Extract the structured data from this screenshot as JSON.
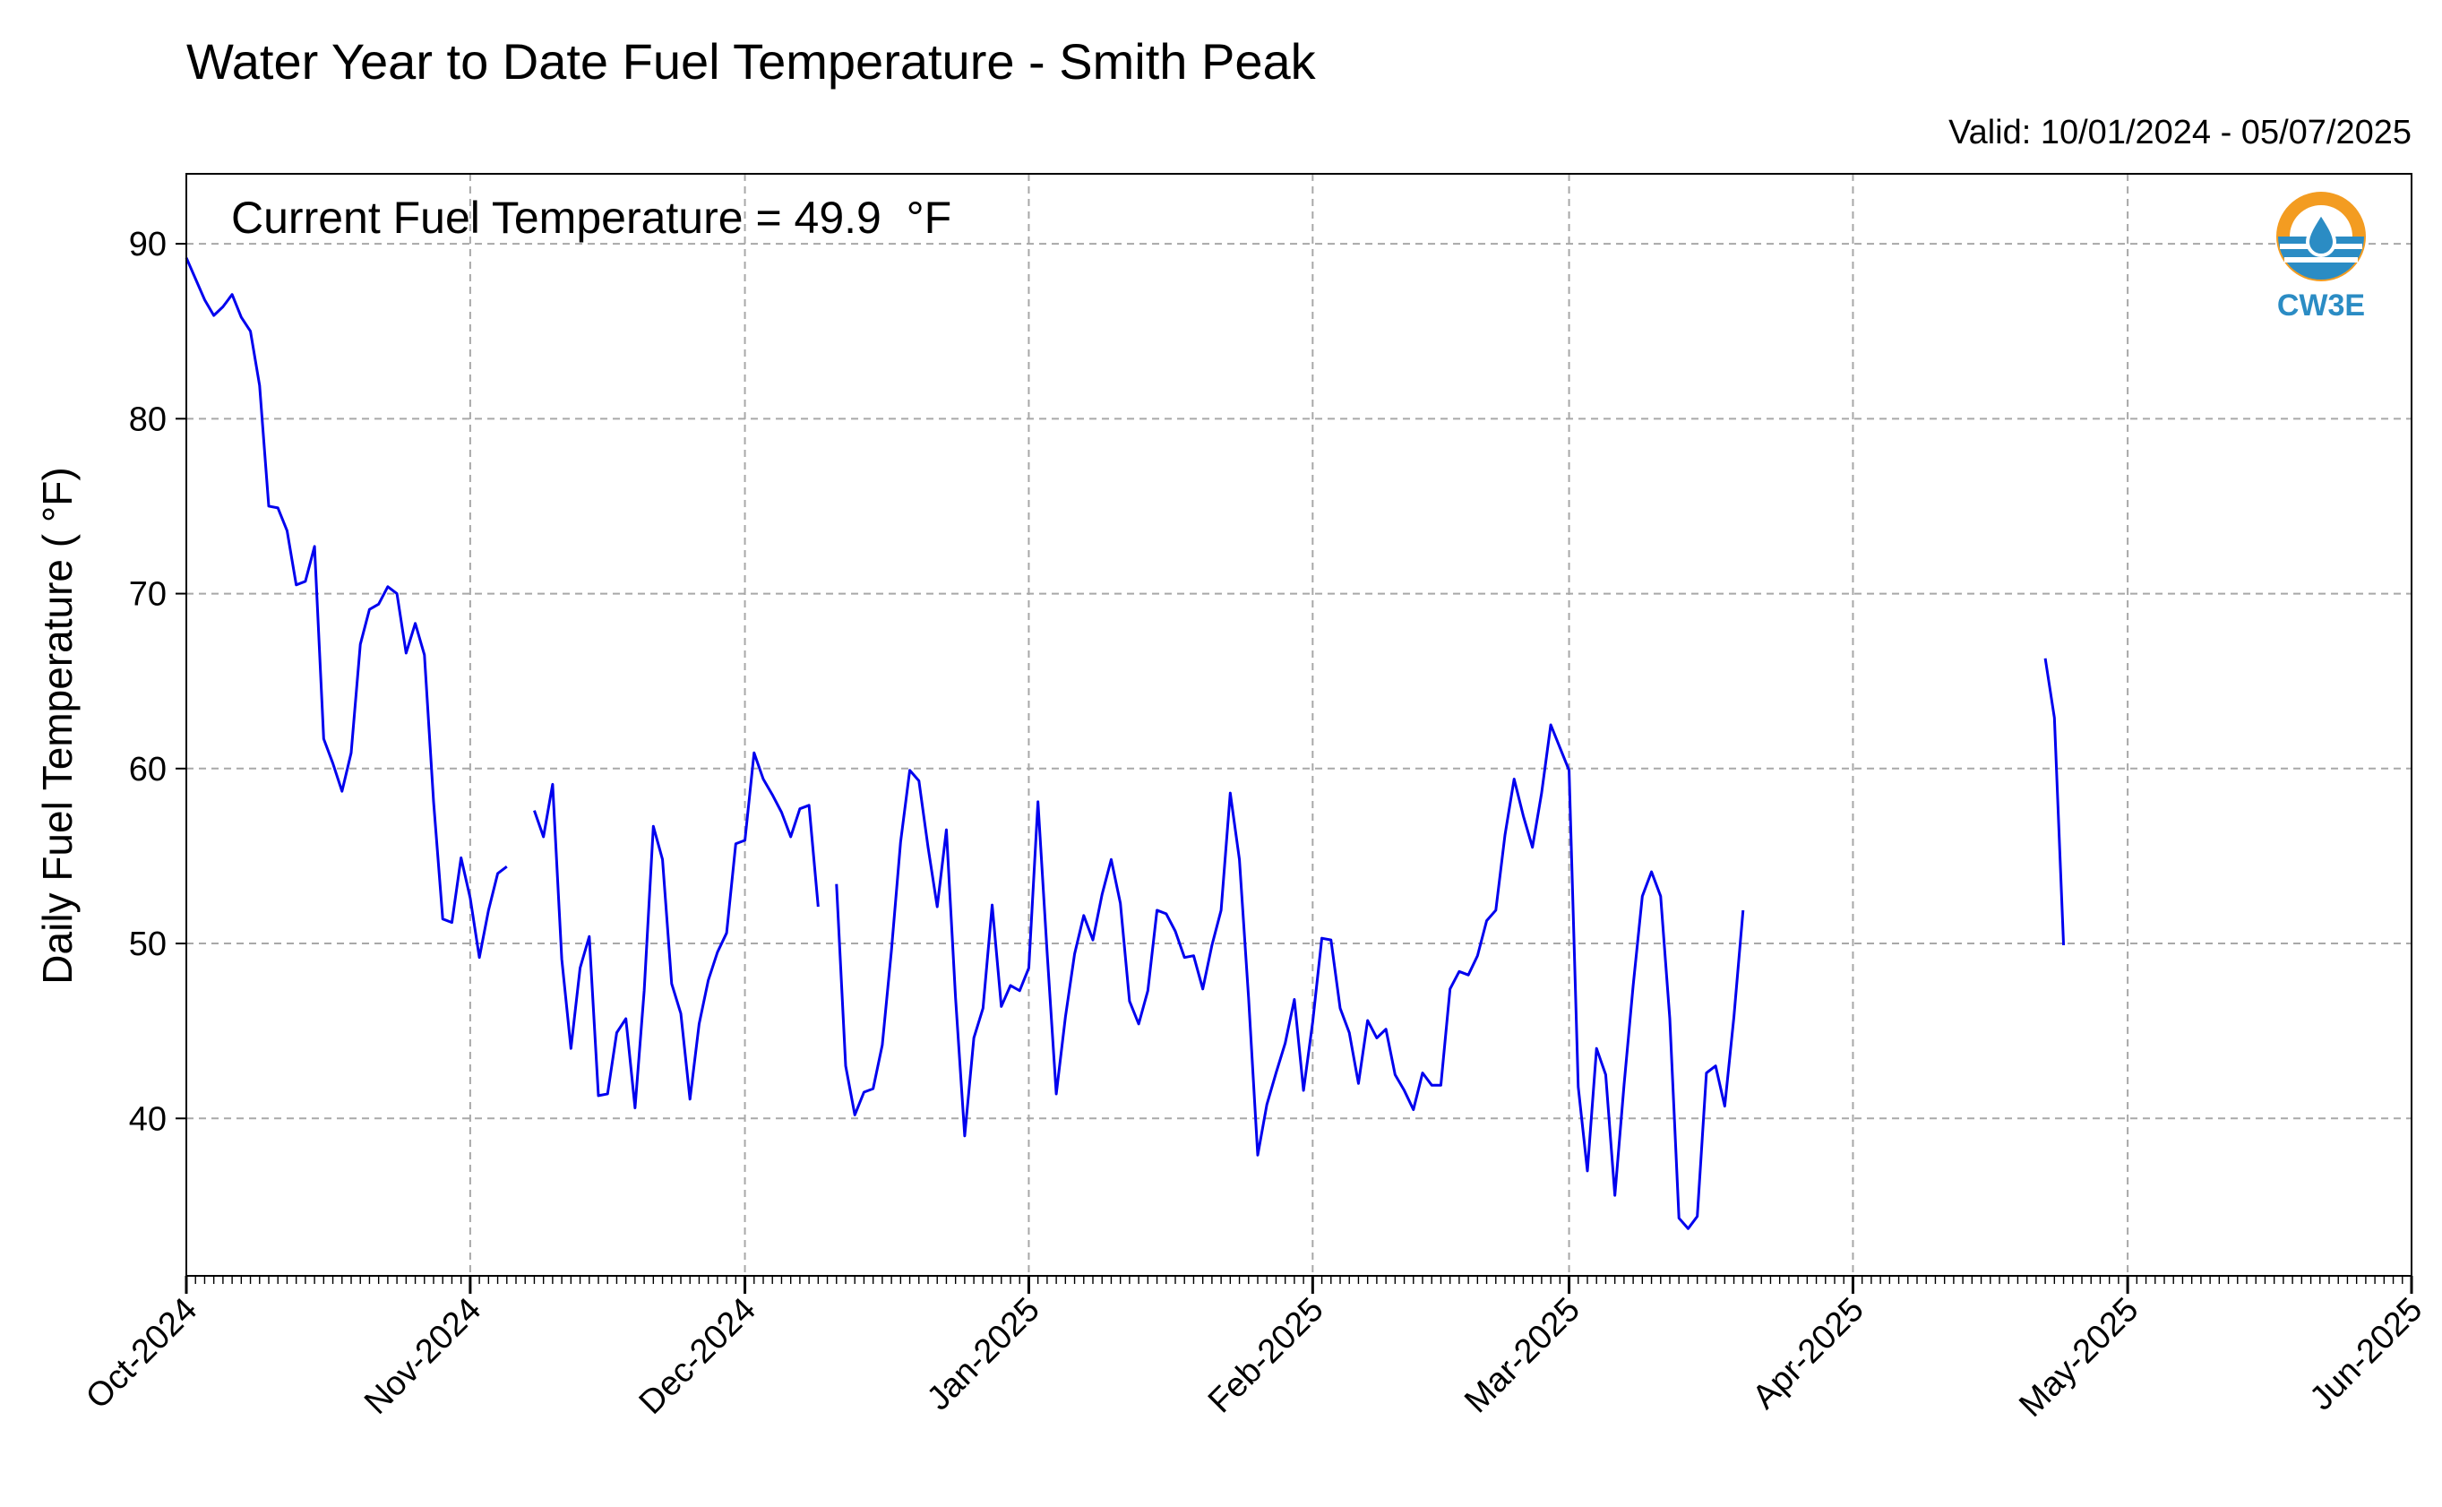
{
  "chart_data": {
    "type": "line",
    "title": "Water Year to Date Fuel Temperature - Smith Peak",
    "valid_text": "Valid: 10/01/2024 - 05/07/2025",
    "annotation": "Current Fuel Temperature = 49.9  °F",
    "xlabel": "",
    "ylabel": "Daily Fuel Temperature ( °F)",
    "x_start": "2024-10-01",
    "xlim": [
      "2024-10-01",
      "2025-06-01"
    ],
    "x_ticks": [
      {
        "date": "2024-10-01",
        "label": "Oct-2024"
      },
      {
        "date": "2024-11-01",
        "label": "Nov-2024"
      },
      {
        "date": "2024-12-01",
        "label": "Dec-2024"
      },
      {
        "date": "2025-01-01",
        "label": "Jan-2025"
      },
      {
        "date": "2025-02-01",
        "label": "Feb-2025"
      },
      {
        "date": "2025-03-01",
        "label": "Mar-2025"
      },
      {
        "date": "2025-04-01",
        "label": "Apr-2025"
      },
      {
        "date": "2025-05-01",
        "label": "May-2025"
      },
      {
        "date": "2025-06-01",
        "label": "Jun-2025"
      }
    ],
    "ylim": [
      31,
      94
    ],
    "y_ticks": [
      40,
      50,
      60,
      70,
      80,
      90
    ],
    "grid": true,
    "line_color": "#0000ee",
    "series": [
      {
        "name": "",
        "segments": [
          {
            "start": "2024-10-01",
            "values": [
              89.2,
              88.0,
              86.8,
              85.9,
              86.4,
              87.1,
              85.8,
              85.0,
              81.9,
              75.0,
              74.9,
              73.6,
              70.5,
              70.7,
              72.7,
              61.7,
              60.3,
              58.7,
              60.9,
              67.1,
              69.1,
              69.4,
              70.4,
              70.0,
              66.6,
              68.3,
              66.5,
              58.1,
              51.4,
              51.2,
              54.9,
              52.6,
              49.2,
              51.9,
              54.0,
              54.4
            ]
          },
          {
            "start": "2024-11-08",
            "values": [
              57.6,
              56.1,
              59.1,
              49.1,
              44.0,
              48.6,
              50.4,
              41.3,
              41.4,
              44.9,
              45.7,
              40.6,
              47.3,
              56.7,
              54.8,
              47.7,
              46.0,
              41.1,
              45.4,
              47.9,
              49.5,
              50.6,
              55.7,
              55.9,
              60.9,
              59.4,
              58.5,
              57.5,
              56.1,
              57.7,
              57.9,
              52.1
            ]
          },
          {
            "start": "2024-12-11",
            "values": [
              53.4,
              43.0,
              40.2,
              41.5,
              41.7,
              44.2,
              49.6,
              55.8,
              59.9,
              59.3,
              55.5,
              52.1,
              56.5,
              46.9,
              39.0,
              44.6,
              46.3,
              52.2,
              46.4,
              47.6,
              47.3,
              48.6,
              58.1,
              49.5,
              41.4,
              45.8,
              49.4,
              51.6,
              50.2,
              52.8,
              54.8,
              52.3,
              46.7,
              45.4,
              47.3,
              51.9,
              51.7,
              50.7,
              49.2,
              49.3,
              47.4,
              49.9,
              51.9,
              58.6,
              54.8,
              46.9,
              37.9,
              40.8,
              42.6,
              44.3,
              46.8,
              41.6,
              45.5,
              50.3,
              50.2,
              46.3,
              44.9,
              42.0,
              45.6,
              44.6,
              45.1,
              42.5,
              41.6,
              40.5,
              42.6,
              41.9,
              41.9,
              47.4,
              48.4,
              48.2,
              49.3,
              51.3,
              51.9,
              56.2,
              59.4,
              57.3,
              55.5,
              58.6,
              62.5,
              61.2,
              59.9,
              41.8,
              37.0,
              44.0,
              42.5,
              35.6,
              41.9,
              47.6,
              52.7,
              54.1,
              52.7,
              45.7,
              34.3,
              33.7,
              34.4,
              42.6,
              43.0,
              40.7,
              45.8,
              51.9
            ]
          },
          {
            "start": "2025-04-22",
            "values": [
              66.3,
              62.9,
              49.9
            ]
          }
        ]
      }
    ]
  },
  "logo": {
    "text": "CW3E",
    "icon": "cw3e-water-drop-logo"
  }
}
